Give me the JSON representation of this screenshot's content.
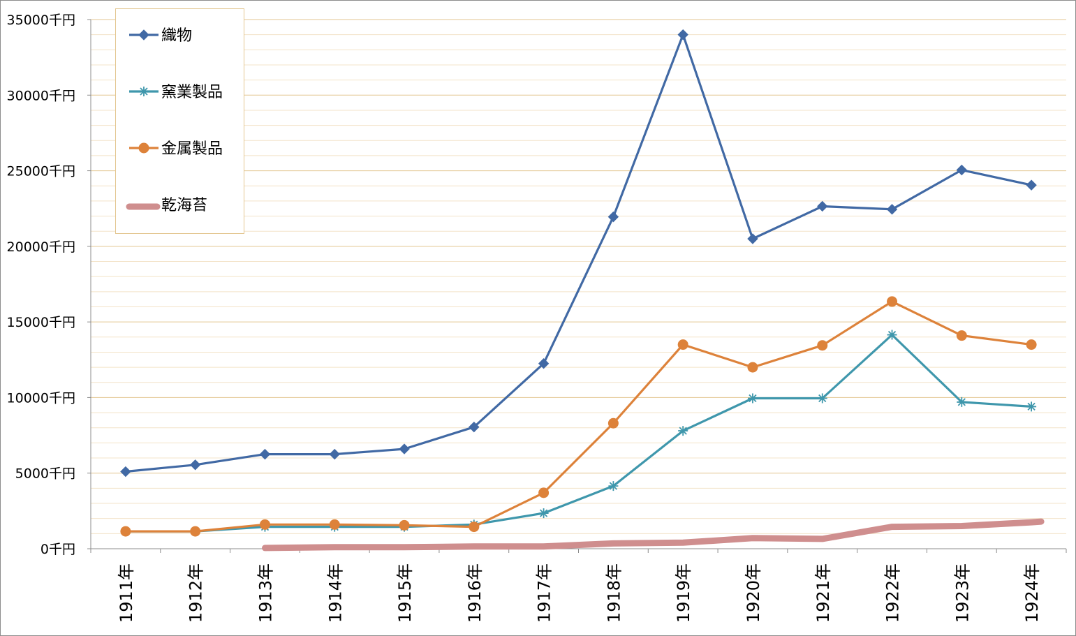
{
  "chart_data": {
    "type": "line",
    "title": "",
    "xlabel": "",
    "ylabel": "",
    "categories": [
      "1911年",
      "1912年",
      "1913年",
      "1914年",
      "1915年",
      "1916年",
      "1917年",
      "1918年",
      "1919年",
      "1920年",
      "1921年",
      "1922年",
      "1923年",
      "1924年"
    ],
    "ylim": [
      0,
      35000
    ],
    "yticks": [
      {
        "value": 0,
        "label": "0千円"
      },
      {
        "value": 5000,
        "label": "5000千円"
      },
      {
        "value": 10000,
        "label": "10000千円"
      },
      {
        "value": 15000,
        "label": "15000千円"
      },
      {
        "value": 20000,
        "label": "20000千円"
      },
      {
        "value": 25000,
        "label": "25000千円"
      },
      {
        "value": 30000,
        "label": "30000千円"
      },
      {
        "value": 35000,
        "label": "35000千円"
      }
    ],
    "grid": true,
    "legend": "top-left",
    "series": [
      {
        "name": "織物",
        "color": "#4169a4",
        "marker": "diamond",
        "values": [
          5100,
          5550,
          6250,
          6250,
          6600,
          8050,
          12250,
          21950,
          34000,
          20500,
          22650,
          22450,
          25050,
          24050
        ]
      },
      {
        "name": "窯業製品",
        "color": "#3f97ac",
        "marker": "asterisk",
        "values": [
          1150,
          1150,
          1450,
          1450,
          1450,
          1600,
          2350,
          4150,
          7800,
          9950,
          9950,
          14150,
          9700,
          9400
        ]
      },
      {
        "name": "金属製品",
        "color": "#dd823a",
        "marker": "circle",
        "values": [
          1150,
          1150,
          1600,
          1600,
          1550,
          1450,
          3700,
          8300,
          13500,
          12000,
          13450,
          16350,
          14100,
          13500
        ]
      },
      {
        "name": "乾海苔",
        "color": "#cf8e8e",
        "marker": "none",
        "values": [
          null,
          null,
          50,
          100,
          100,
          150,
          150,
          350,
          400,
          700,
          650,
          1450,
          1500,
          1750
        ]
      }
    ]
  }
}
